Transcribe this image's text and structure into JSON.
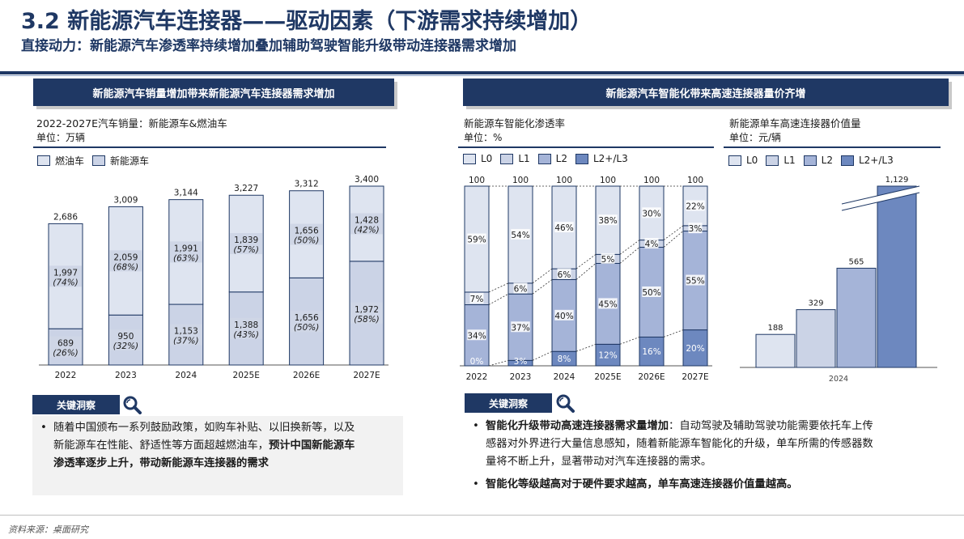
{
  "header": {
    "title": "3.2 新能源汽车连接器——驱动因素（下游需求持续增加）",
    "subtitle": "直接动力：新能源汽车渗透率持续增加叠加辅助驾驶智能升级带动连接器需求增加"
  },
  "left_panel": {
    "banner": "新能源汽车销量增加带来新能源汽车连接器需求增加",
    "chart_title": "2022-2027E汽车销量：新能源车&燃油车",
    "unit": "单位：万辆",
    "legend": [
      "燃油车",
      "新能源车"
    ]
  },
  "right_panel": {
    "banner": "新能源汽车智能化带来高速连接器量价齐增",
    "chart1_title": "新能源车智能化渗透率",
    "chart1_unit": "单位：%",
    "chart1_legend": [
      "L0",
      "L1",
      "L2",
      "L2+/L3"
    ],
    "chart2_title": "新能源单车高速连接器价值量",
    "chart2_unit": "单位：元/辆",
    "chart2_legend": [
      "L0",
      "L1",
      "L2",
      "L2+/L3"
    ]
  },
  "colors": {
    "navy": "#1f3864",
    "ice": "#dee4f0",
    "light": "#cbd3e6",
    "mid": "#a5b4d8",
    "deep": "#6d88bf"
  },
  "chart_data": [
    {
      "type": "bar",
      "stacked": true,
      "categories": [
        "2022",
        "2023",
        "2024",
        "2025E",
        "2026E",
        "2027E"
      ],
      "totals": [
        "2,686",
        "3,009",
        "3,144",
        "3,227",
        "3,312",
        "3,400"
      ],
      "series": [
        {
          "name": "新能源车",
          "values": [
            689,
            950,
            1153,
            1388,
            1656,
            1972
          ],
          "labels": [
            "689",
            "950",
            "1,153",
            "1,388",
            "1,656",
            "1,972"
          ],
          "pct": [
            "(26%)",
            "(32%)",
            "(37%)",
            "(43%)",
            "(50%)",
            "(58%)"
          ]
        },
        {
          "name": "燃油车",
          "values": [
            1997,
            2059,
            1991,
            1839,
            1656,
            1428
          ],
          "labels": [
            "1,997",
            "2,059",
            "1,991",
            "1,839",
            "1,656",
            "1,428"
          ],
          "pct": [
            "(74%)",
            "(68%)",
            "(63%)",
            "(57%)",
            "(50%)",
            "(42%)"
          ]
        }
      ],
      "ylim": [
        0,
        3400
      ]
    },
    {
      "type": "bar",
      "stacked": true,
      "categories": [
        "2022",
        "2023",
        "2024",
        "2025E",
        "2026E",
        "2027E"
      ],
      "totals": [
        "100",
        "100",
        "100",
        "100",
        "100",
        "100"
      ],
      "series": [
        {
          "name": "L2+/L3",
          "values": [
            0,
            3,
            8,
            12,
            16,
            20
          ],
          "labels": [
            "0%",
            "3%",
            "8%",
            "12%",
            "16%",
            "20%"
          ]
        },
        {
          "name": "L2",
          "values": [
            34,
            37,
            40,
            45,
            50,
            55
          ],
          "labels": [
            "34%",
            "37%",
            "40%",
            "45%",
            "50%",
            "55%"
          ]
        },
        {
          "name": "L1",
          "values": [
            7,
            6,
            6,
            5,
            4,
            3
          ],
          "labels": [
            "7%",
            "6%",
            "6%",
            "5%",
            "4%",
            "3%"
          ]
        },
        {
          "name": "L0",
          "values": [
            59,
            54,
            46,
            38,
            30,
            22
          ],
          "labels": [
            "59%",
            "54%",
            "46%",
            "38%",
            "30%",
            "22%"
          ]
        }
      ],
      "ylim": [
        0,
        100
      ]
    },
    {
      "type": "bar",
      "categories": [
        "L0",
        "L1",
        "L2",
        "L2+/L3"
      ],
      "values": [
        188,
        329,
        565,
        1129
      ],
      "labels": [
        "188",
        "329",
        "565",
        "1,129"
      ],
      "xlabel": "2024",
      "axis_break": true
    }
  ],
  "insights": {
    "tag": "关键洞察",
    "left": {
      "lines": [
        "随着中国颁布一系列鼓励政策，如购车补贴、以旧换新等，以及",
        "新能源车在性能、舒适性等方面超越燃油车，",
        "预计中国新能源车",
        "渗透率逐步上升，带动新能源车连接器的需求"
      ]
    },
    "right": {
      "b1_bold": "智能化升级带动高速连接器需求量增加",
      "b1_line1": "：自动驾驶及辅助驾驶功能需要依托车上传",
      "b1_line2": "感器对外界进行大量信息感知，随着新能源车智能化的升级，单车所需的传感器数",
      "b1_line3": "量将不断上升，显著带动对汽车连接器的需求。",
      "b2_bold": "智能化等级越高对于硬件要求越高，单车高速连接器价值量越高。"
    }
  },
  "footer": "资料来源：桌面研究"
}
